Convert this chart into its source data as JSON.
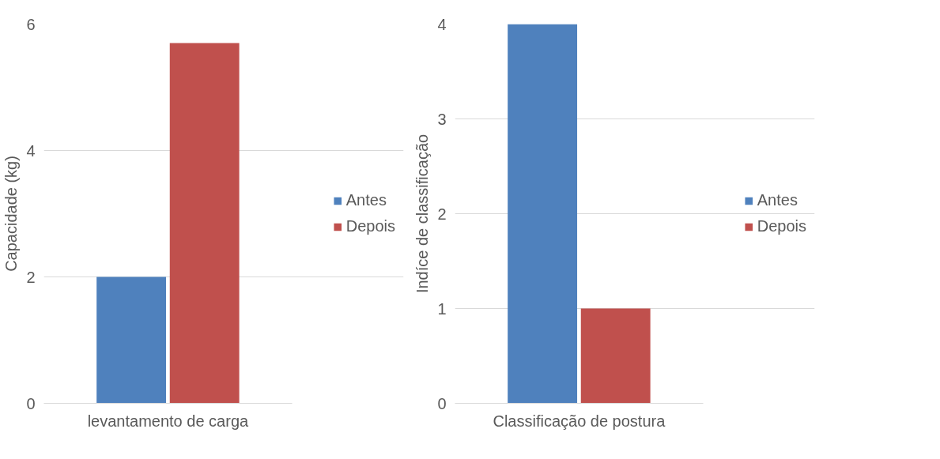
{
  "chart_data": [
    {
      "type": "bar",
      "categories": [
        "levantamento de carga"
      ],
      "ylabel": "Capacidade (kg)",
      "ylim": [
        0,
        6
      ],
      "yticks": [
        0,
        2,
        4,
        6
      ],
      "grid": "y",
      "legend": "right",
      "series": [
        {
          "name": "Antes",
          "color": "#4f81bd",
          "values": [
            2.0
          ]
        },
        {
          "name": "Depois",
          "color": "#c0504d",
          "values": [
            5.7
          ]
        }
      ]
    },
    {
      "type": "bar",
      "categories": [
        "Classificação de postura"
      ],
      "ylabel": "Indíce de classificação",
      "ylim": [
        0,
        4
      ],
      "yticks": [
        0,
        1,
        2,
        3,
        4
      ],
      "grid": "y",
      "legend": "right",
      "series": [
        {
          "name": "Antes",
          "color": "#4f81bd",
          "values": [
            4.0
          ]
        },
        {
          "name": "Depois",
          "color": "#c0504d",
          "values": [
            1.0
          ]
        }
      ]
    }
  ]
}
